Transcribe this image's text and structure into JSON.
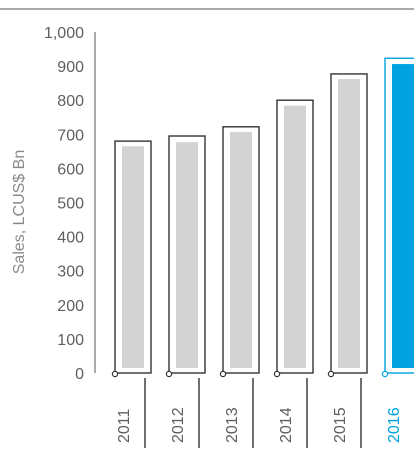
{
  "colors": {
    "axis": "#555555",
    "bar_fill": "#d3d3d3",
    "outline": "#333333",
    "highlight": "#00a3e0",
    "text": "#5f5f5f"
  },
  "chart_data": {
    "type": "bar",
    "title": "",
    "xlabel": "",
    "ylabel": "Sales, LCUS$ Bn",
    "ylim": [
      0,
      1000
    ],
    "y_ticks": [
      "0",
      "100",
      "200",
      "300",
      "400",
      "500",
      "600",
      "700",
      "800",
      "900",
      "1,000"
    ],
    "y_tick_values": [
      0,
      100,
      200,
      300,
      400,
      500,
      600,
      700,
      800,
      900,
      1000
    ],
    "categories": [
      "2011",
      "2012",
      "2013",
      "2014",
      "2015",
      "2016"
    ],
    "series": [
      {
        "values": [
          665,
          677,
          707,
          784,
          862,
          906
        ]
      }
    ],
    "outline_values": [
      680,
      695,
      722,
      800,
      877,
      923
    ],
    "highlighted_category": "2016",
    "grid": false,
    "legend": "none"
  }
}
